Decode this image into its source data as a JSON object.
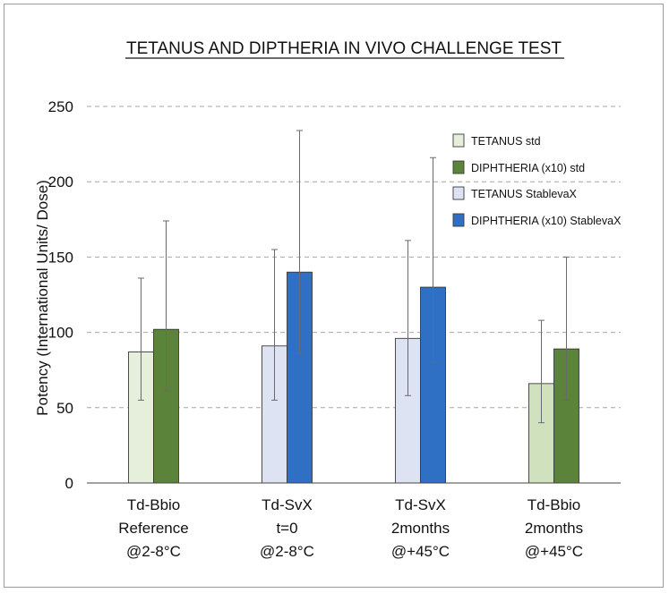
{
  "chart_data": {
    "type": "bar",
    "title": "TETANUS AND DIPTHERIA IN VIVO CHALLENGE TEST",
    "ylabel": "Potency (International Units/ Dose)",
    "xlabel": "",
    "ylim": [
      0,
      250
    ],
    "yticks": [
      0,
      50,
      100,
      150,
      200,
      250
    ],
    "grid": true,
    "legend_position": "top-right",
    "categories": [
      [
        "Td-Bbio",
        "Reference",
        "@2-8°C"
      ],
      [
        "Td-SvX",
        "t=0",
        "@2-8°C"
      ],
      [
        "Td-SvX",
        "2months",
        "@+45°C"
      ],
      [
        "Td-Bbio",
        "2months",
        "@+45°C"
      ]
    ],
    "series": [
      {
        "name": "TETANUS std",
        "color": "#e6efdc"
      },
      {
        "name": "DIPHTHERIA (x10) std",
        "color": "#5b8339"
      },
      {
        "name": "TETANUS StablevaX",
        "color": "#dde3f3"
      },
      {
        "name": "DIPHTHERIA (x10) StablevaX",
        "color": "#2f6fc4"
      }
    ],
    "groups": [
      {
        "category": 0,
        "bars": [
          {
            "series": 0,
            "value": 87,
            "err_low": 55,
            "err_high": 136
          },
          {
            "series": 1,
            "value": 102,
            "err_low": 61,
            "err_high": 174
          }
        ]
      },
      {
        "category": 1,
        "bars": [
          {
            "series": 2,
            "value": 91,
            "err_low": 55,
            "err_high": 155
          },
          {
            "series": 3,
            "value": 140,
            "err_low": 86,
            "err_high": 234
          }
        ]
      },
      {
        "category": 2,
        "bars": [
          {
            "series": 2,
            "value": 96,
            "err_low": 58,
            "err_high": 161
          },
          {
            "series": 3,
            "value": 130,
            "err_low": 80,
            "err_high": 216
          }
        ]
      },
      {
        "category": 3,
        "bars": [
          {
            "series": 0,
            "value": 66,
            "err_low": 40,
            "err_high": 108,
            "color_override": "#cfe2bd"
          },
          {
            "series": 1,
            "value": 89,
            "err_low": 55,
            "err_high": 150
          }
        ]
      }
    ]
  }
}
